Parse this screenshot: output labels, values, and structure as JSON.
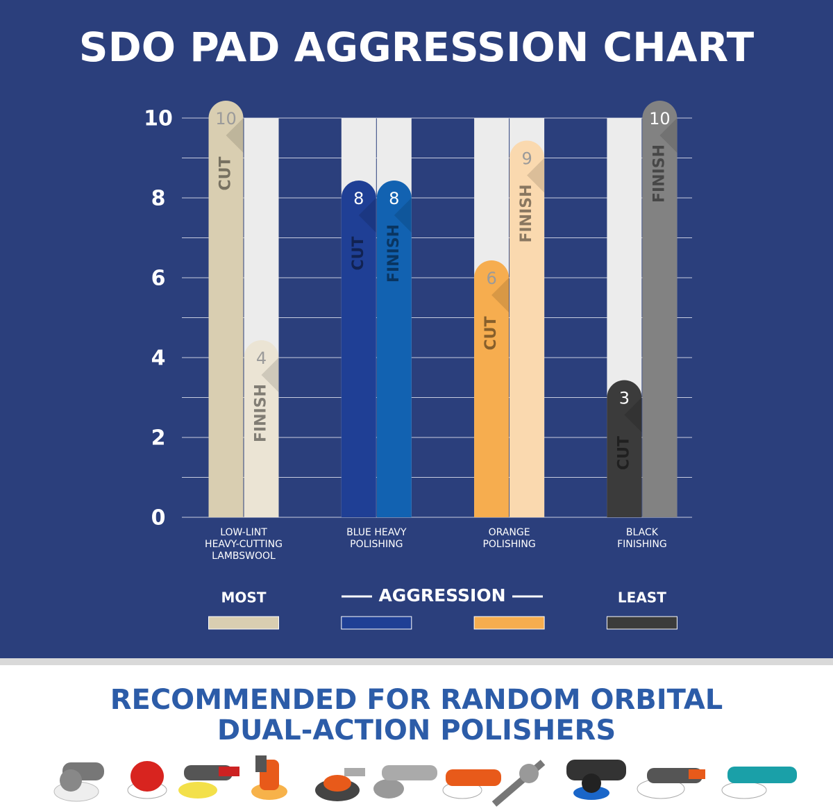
{
  "chart_data": {
    "type": "bar",
    "title": "SDO PAD AGGRESSION CHART",
    "categories": [
      [
        "LOW-LINT",
        "HEAVY-CUTTING",
        "LAMBSWOOL"
      ],
      [
        "BLUE HEAVY",
        "POLISHING"
      ],
      [
        "ORANGE",
        "POLISHING"
      ],
      [
        "BLACK",
        "FINISHING"
      ]
    ],
    "series": [
      {
        "name": "CUT",
        "color": [
          "#d9ceb1",
          "#1f3f95",
          "#f6ad4f",
          "#3b3b3b"
        ],
        "values": [
          10,
          8,
          6,
          3
        ]
      },
      {
        "name": "FINISH",
        "color": [
          "#ebe4d4",
          "#1262b1",
          "#fad9af",
          "#828282"
        ],
        "values": [
          4,
          8,
          9,
          10
        ]
      }
    ],
    "ylim": [
      0,
      10
    ],
    "yticks": [
      0,
      2,
      4,
      6,
      8,
      10
    ],
    "grid": true,
    "legend": {
      "most": "MOST",
      "label": "AGGRESSION",
      "least": "LEAST"
    },
    "footer": [
      "RECOMMENDED FOR RANDOM ORBITAL",
      "DUAL-ACTION POLISHERS"
    ]
  }
}
